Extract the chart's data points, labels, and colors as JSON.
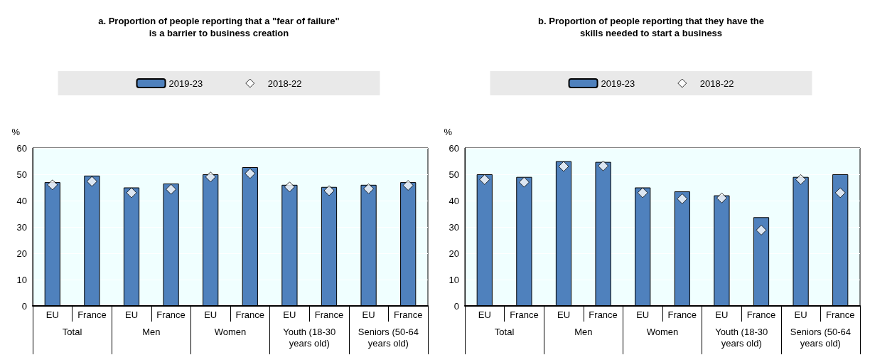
{
  "chart_data": [
    {
      "type": "bar",
      "title": "a. Proportion of people reporting that a \"fear of failure\"\nis a barrier to business creation",
      "ylabel": "%",
      "categories": [
        "EU",
        "France",
        "EU",
        "France",
        "EU",
        "France",
        "EU",
        "France",
        "EU",
        "France"
      ],
      "annotations": [
        "Total",
        "Men",
        "Women",
        "Youth (18-30\nyears old)",
        "Seniors (50-64\nyears old)"
      ],
      "ylim": [
        0,
        60
      ],
      "yticks": [
        0,
        10,
        20,
        30,
        40,
        50,
        60
      ],
      "grid": true,
      "legend": "top",
      "series": [
        {
          "name": "2019-23",
          "color": "#4f81bd",
          "values": [
            47,
            49.5,
            45,
            46.5,
            50,
            52.7,
            46,
            45.2,
            46,
            47
          ]
        },
        {
          "name": "2018-22",
          "type": "scatter",
          "marker": "diamond",
          "color": "#ffffff",
          "values": [
            46,
            47.3,
            43,
            44.3,
            49,
            50.3,
            45.2,
            43.8,
            44.5,
            45.8
          ]
        }
      ]
    },
    {
      "type": "bar",
      "title": "b. Proportion of people reporting that they have the\nskills needed to start a business",
      "ylabel": "%",
      "categories": [
        "EU",
        "France",
        "EU",
        "France",
        "EU",
        "France",
        "EU",
        "France",
        "EU",
        "France"
      ],
      "annotations": [
        "Total",
        "Men",
        "Women",
        "Youth (18-30\nyears old)",
        "Seniors (50-64\nyears old)"
      ],
      "ylim": [
        0,
        60
      ],
      "yticks": [
        0,
        10,
        20,
        30,
        40,
        50,
        60
      ],
      "grid": true,
      "legend": "top",
      "series": [
        {
          "name": "2019-23",
          "color": "#4f81bd",
          "values": [
            50,
            49,
            55,
            54.7,
            45,
            43.5,
            42,
            33.7,
            49,
            50
          ]
        },
        {
          "name": "2018-22",
          "type": "scatter",
          "marker": "diamond",
          "color": "#ffffff",
          "values": [
            48,
            47,
            53,
            53.2,
            43,
            40.7,
            41,
            28.8,
            48,
            43
          ]
        }
      ]
    }
  ]
}
